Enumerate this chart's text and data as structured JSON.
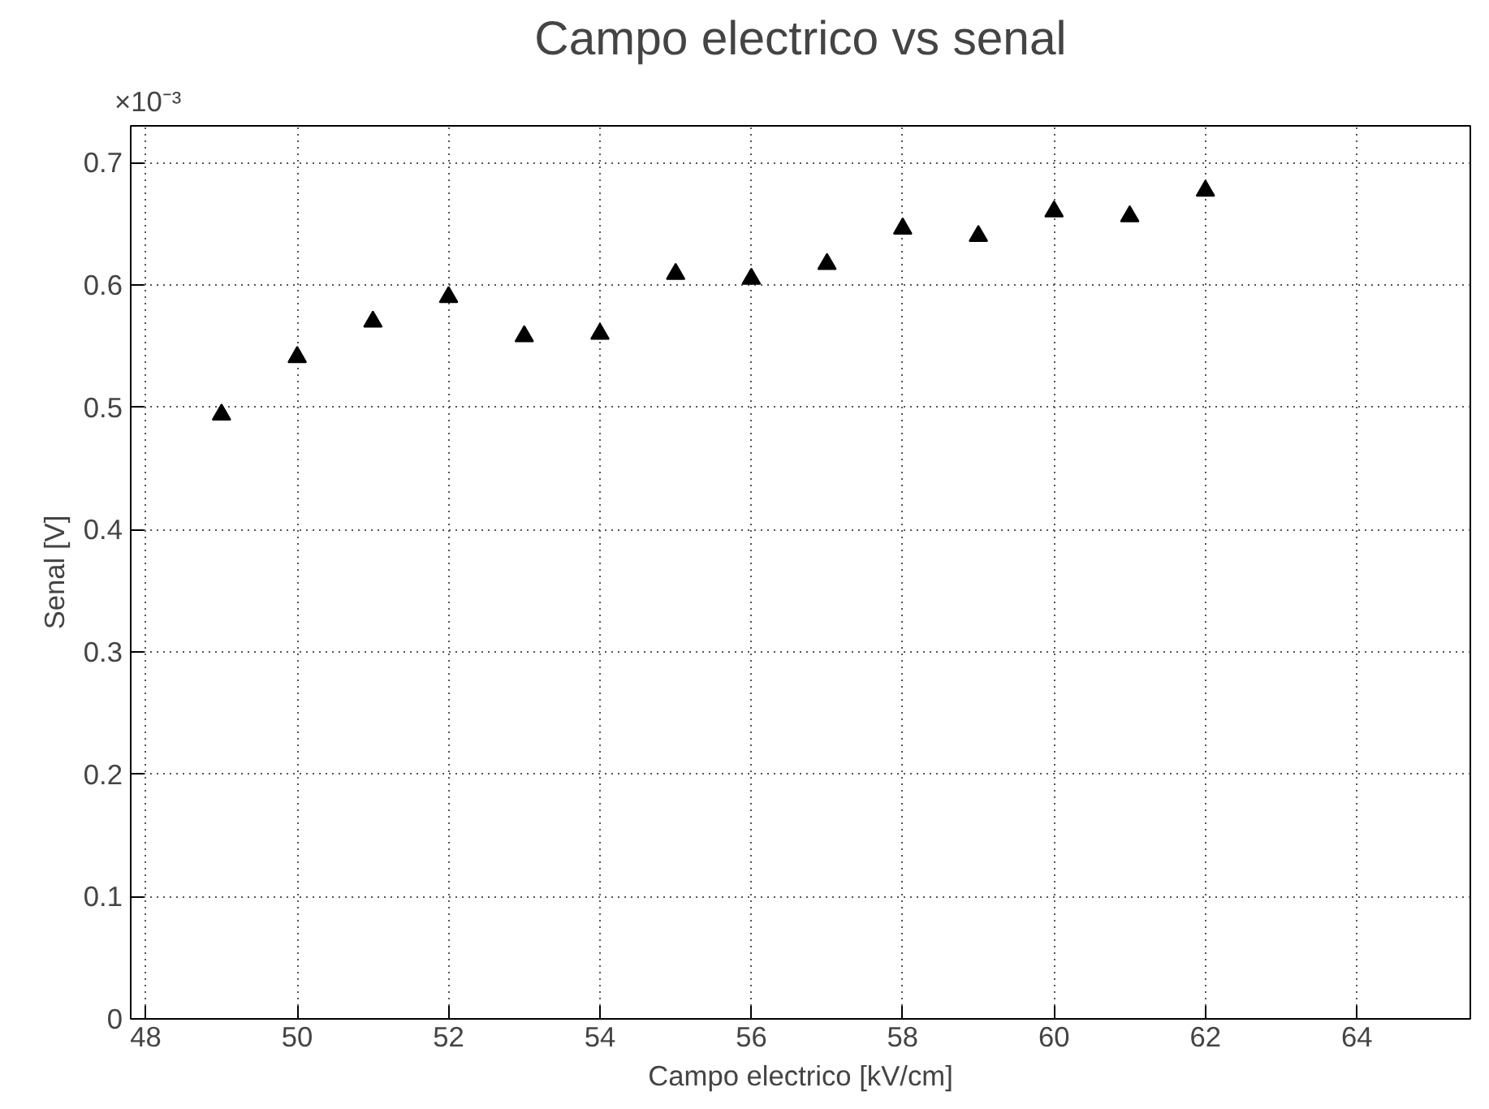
{
  "chart_data": {
    "type": "scatter",
    "title": "Campo electrico vs senal",
    "xlabel": "Campo electrico [kV/cm]",
    "ylabel": "Senal [V]",
    "annotations": [
      "×10⁻³"
    ],
    "x": [
      49,
      50,
      51,
      52,
      53,
      54,
      55,
      56,
      57,
      58,
      59,
      60,
      61,
      62
    ],
    "series": [
      {
        "color": "#000000",
        "values": [
          0.494,
          0.541,
          0.57,
          0.59,
          0.558,
          0.56,
          0.609,
          0.605,
          0.617,
          0.646,
          0.64,
          0.66,
          0.656,
          0.677
        ]
      }
    ],
    "xlim": [
      47.8,
      65.5
    ],
    "ylim": [
      0,
      0.73
    ],
    "xticks": [
      48,
      50,
      52,
      54,
      56,
      58,
      60,
      62,
      64
    ],
    "yticks": [
      0,
      0.1,
      0.2,
      0.3,
      0.4,
      0.5,
      0.6,
      0.7
    ],
    "grid": true,
    "marker": "triangle"
  }
}
